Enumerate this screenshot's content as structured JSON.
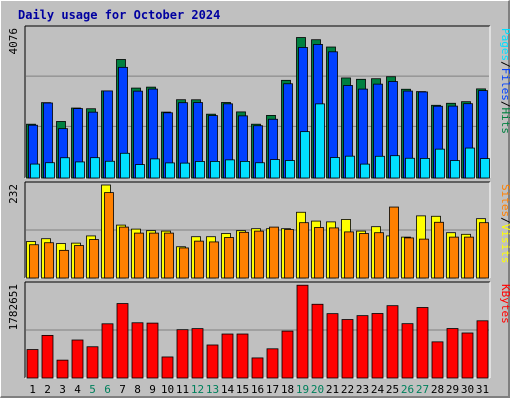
{
  "chart_data": {
    "type": "bar",
    "title": "Daily usage for October 2024",
    "days": [
      "1",
      "2",
      "3",
      "4",
      "5",
      "6",
      "7",
      "8",
      "9",
      "10",
      "11",
      "12",
      "13",
      "14",
      "15",
      "16",
      "17",
      "18",
      "19",
      "20",
      "21",
      "22",
      "23",
      "24",
      "25",
      "26",
      "27",
      "28",
      "29",
      "30",
      "31"
    ],
    "weekend_days": [
      "5",
      "6",
      "12",
      "13",
      "19",
      "20",
      "26",
      "27"
    ],
    "panels": [
      {
        "id": "hits",
        "ymax_label": "4076",
        "ymax": 4076,
        "side_labels": [
          "Pages",
          "Files",
          "Hits"
        ],
        "side_colors": [
          "#00e0ff",
          "#0040ff",
          "#008040"
        ],
        "series": [
          {
            "name": "Hits",
            "color": "#008040",
            "values": [
              1472,
              2062,
              1546,
              1914,
              1895,
              2383,
              3242,
              2460,
              2486,
              1803,
              2142,
              2140,
              1746,
              2066,
              1808,
              1472,
              1712,
              2672,
              3843,
              3783,
              3583,
              2737,
              2700,
              2716,
              2770,
              2428,
              2364,
              1989,
              2044,
              2088,
              2438
            ]
          },
          {
            "name": "Files",
            "color": "#0040ff",
            "values": [
              1444,
              2052,
              1350,
              1899,
              1801,
              2382,
              3027,
              2376,
              2433,
              1784,
              2060,
              2064,
              1707,
              2029,
              1700,
              1430,
              1607,
              2578,
              3571,
              3654,
              3452,
              2531,
              2432,
              2568,
              2639,
              2378,
              2354,
              1963,
              1967,
              2033,
              2391
            ]
          },
          {
            "name": "Pages",
            "color": "#00e0ff",
            "values": [
              381,
              418,
              554,
              440,
              556,
              458,
              676,
              367,
              523,
              413,
              407,
              452,
              453,
              496,
              454,
              417,
              504,
              478,
              1268,
              2028,
              560,
              597,
              380,
              594,
              610,
              540,
              535,
              789,
              478,
              819,
              531
            ]
          }
        ]
      },
      {
        "id": "visits",
        "ymax_label": "232",
        "ymax": 232,
        "side_labels": [
          "Sites",
          "Visits"
        ],
        "side_colors": [
          "#ff8000",
          "#ffff00"
        ],
        "series": [
          {
            "name": "Visits",
            "color": "#ffff00",
            "values": [
              91,
              98,
              86,
              87,
              105,
              232,
              132,
              122,
              118,
              117,
              78,
              103,
              103,
              111,
              118,
              123,
              123,
              123,
              164,
              142,
              140,
              146,
              117,
              128,
              105,
              102,
              155,
              154,
              113,
              109,
              148
            ]
          },
          {
            "name": "Sites",
            "color": "#ff8000",
            "values": [
              83,
              88,
              69,
              81,
              96,
              213,
              127,
              112,
              112,
              112,
              75,
              92,
              90,
              101,
              114,
              117,
              127,
              121,
              138,
              126,
              125,
              115,
              111,
              113,
              177,
              100,
              97,
              139,
              102,
              102,
              138
            ]
          }
        ]
      },
      {
        "id": "kbytes",
        "ymax_label": "1782651",
        "ymax": 1782651,
        "side_labels": [
          "KBytes"
        ],
        "side_colors": [
          "#ff0000"
        ],
        "series": [
          {
            "name": "KBytes",
            "color": "#ff0000",
            "values": [
              545440,
              816760,
              342420,
              728400,
              599050,
              1039050,
              1427030,
              1058880,
              1052240,
              403380,
              926600,
              946700,
              632950,
              843000,
              843190,
              384920,
              559800,
              898870,
              1778650,
              1413600,
              1233610,
              1120620,
              1195530,
              1236440,
              1386460,
              1041590,
              1351460,
              693050,
              948290,
              862900,
              1096730
            ]
          }
        ]
      }
    ]
  }
}
